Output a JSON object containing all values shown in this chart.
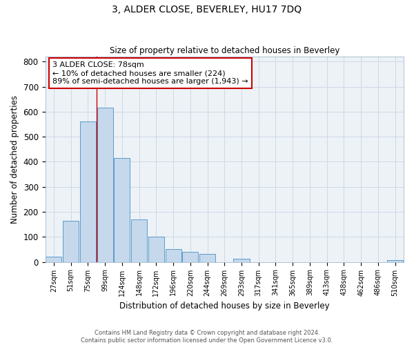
{
  "title": "3, ALDER CLOSE, BEVERLEY, HU17 7DQ",
  "subtitle": "Size of property relative to detached houses in Beverley",
  "xlabel": "Distribution of detached houses by size in Beverley",
  "ylabel": "Number of detached properties",
  "bar_labels": [
    "27sqm",
    "51sqm",
    "75sqm",
    "99sqm",
    "124sqm",
    "148sqm",
    "172sqm",
    "196sqm",
    "220sqm",
    "244sqm",
    "269sqm",
    "293sqm",
    "317sqm",
    "341sqm",
    "365sqm",
    "389sqm",
    "413sqm",
    "438sqm",
    "462sqm",
    "486sqm",
    "510sqm"
  ],
  "bar_heights": [
    20,
    165,
    560,
    615,
    415,
    170,
    100,
    50,
    40,
    33,
    0,
    12,
    0,
    0,
    0,
    0,
    0,
    0,
    0,
    0,
    8
  ],
  "bar_color": "#c5d8ec",
  "bar_edge_color": "#5b9bc8",
  "ylim": [
    0,
    820
  ],
  "yticks": [
    0,
    100,
    200,
    300,
    400,
    500,
    600,
    700,
    800
  ],
  "red_line_x": 2.5,
  "annotation_title": "3 ALDER CLOSE: 78sqm",
  "annotation_line1": "← 10% of detached houses are smaller (224)",
  "annotation_line2": "89% of semi-detached houses are larger (1,943) →",
  "annotation_box_color": "#ffffff",
  "annotation_border_color": "#cc0000",
  "red_line_color": "#cc0000",
  "grid_color": "#cdd9e5",
  "background_color": "#edf2f7",
  "footer_line1": "Contains HM Land Registry data © Crown copyright and database right 2024.",
  "footer_line2": "Contains public sector information licensed under the Open Government Licence v3.0."
}
